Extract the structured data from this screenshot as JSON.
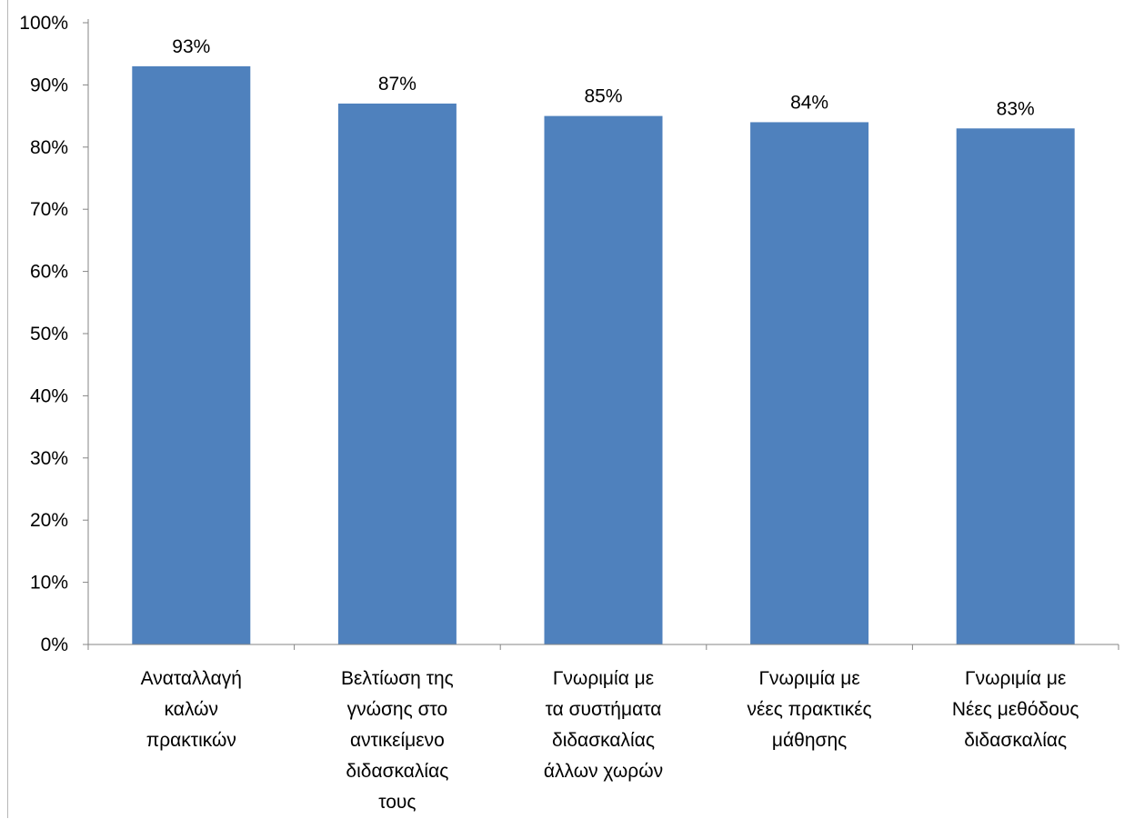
{
  "chart_data": {
    "type": "bar",
    "title": "",
    "xlabel": "",
    "ylabel": "",
    "ylim": [
      0,
      100
    ],
    "yticks": [
      "0%",
      "10%",
      "20%",
      "30%",
      "40%",
      "50%",
      "60%",
      "70%",
      "80%",
      "90%",
      "100%"
    ],
    "grid": false,
    "legend": "none",
    "bar_color": "#4F81BD",
    "categories": [
      [
        "Αναταλλαγή",
        "καλών",
        "πρακτικών"
      ],
      [
        "Βελτίωση της",
        "γνώσης στο",
        "αντικείμενο",
        "διδασκαλίας",
        "τους"
      ],
      [
        "Γνωριμία με",
        "τα συστήματα",
        "διδασκαλίας",
        "άλλων χωρών"
      ],
      [
        "Γνωριμία με",
        "νέες πρακτικές",
        "μάθησης"
      ],
      [
        "Γνωριμία με",
        "Νέες μεθόδους",
        "διδασκαλίας"
      ]
    ],
    "values": [
      93,
      87,
      85,
      84,
      83
    ],
    "data_labels": [
      "93%",
      "87%",
      "85%",
      "84%",
      "83%"
    ]
  }
}
